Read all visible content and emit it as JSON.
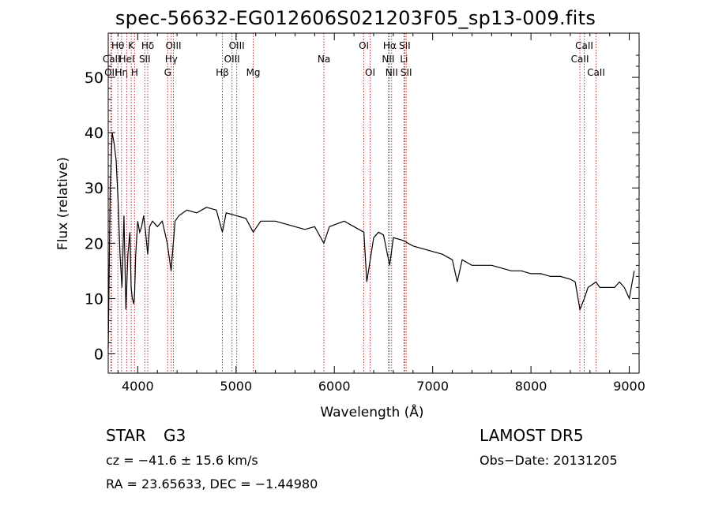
{
  "chart_data": {
    "type": "line",
    "title": "spec-56632-EG012606S021203F05_sp13-009.fits",
    "xlabel": "Wavelength (Å)",
    "ylabel": "Flux (relative)",
    "xlim": [
      3700,
      9100
    ],
    "ylim": [
      -3.5,
      58
    ],
    "xticks": [
      4000,
      5000,
      6000,
      7000,
      8000,
      9000
    ],
    "yticks": [
      0,
      10,
      20,
      30,
      40,
      50
    ],
    "grid": false,
    "series": [
      {
        "x": [
          3700,
          3720,
          3740,
          3760,
          3780,
          3800,
          3820,
          3840,
          3860,
          3880,
          3900,
          3920,
          3933,
          3945,
          3960,
          3968,
          3980,
          4000,
          4020,
          4040,
          4060,
          4080,
          4102,
          4120,
          4150,
          4200,
          4250,
          4300,
          4340,
          4380,
          4420,
          4500,
          4600,
          4700,
          4800,
          4861,
          4900,
          5000,
          5100,
          5175,
          5250,
          5400,
          5500,
          5600,
          5700,
          5800,
          5893,
          5950,
          6100,
          6200,
          6300,
          6330,
          6400,
          6450,
          6500,
          6563,
          6600,
          6700,
          6800,
          6900,
          7000,
          7100,
          7200,
          7250,
          7300,
          7400,
          7500,
          7600,
          7700,
          7800,
          7900,
          8000,
          8100,
          8200,
          8300,
          8400,
          8450,
          8498,
          8542,
          8580,
          8662,
          8700,
          8800,
          8850,
          8900,
          8950,
          9000,
          9050
        ],
        "values": [
          1,
          30,
          40,
          38,
          35,
          28,
          18,
          12,
          25,
          8,
          18,
          22,
          12,
          10,
          9,
          11,
          18,
          24,
          22,
          23,
          25,
          22,
          18,
          23,
          24,
          23,
          24,
          20,
          15,
          24,
          25,
          26,
          25.5,
          26.5,
          26,
          22,
          25.5,
          25,
          24.5,
          22,
          24,
          24,
          23.5,
          23,
          22.5,
          23,
          20,
          23,
          24,
          23,
          22,
          13,
          21,
          22,
          21.5,
          16,
          21,
          20.5,
          19.5,
          19,
          18.5,
          18,
          17,
          13,
          17,
          16,
          16,
          16,
          15.5,
          15,
          15,
          14.5,
          14.5,
          14,
          14,
          13.5,
          13,
          8,
          10,
          12,
          13,
          12,
          12,
          12,
          13,
          12,
          10,
          15
        ]
      }
    ],
    "lines": [
      {
        "label": "OII",
        "x": 3727,
        "row": 3
      },
      {
        "label": "CaII",
        "x": 3734,
        "row": 2
      },
      {
        "label": "Hθ",
        "x": 3798,
        "row": 1
      },
      {
        "label": "Hη",
        "x": 3835,
        "row": 3
      },
      {
        "label": "HeI",
        "x": 3889,
        "row": 2
      },
      {
        "label": "K",
        "x": 3934,
        "row": 1
      },
      {
        "label": "H",
        "x": 3968,
        "row": 3
      },
      {
        "label": "SII",
        "x": 4072,
        "row": 2
      },
      {
        "label": "Hδ",
        "x": 4102,
        "row": 1
      },
      {
        "label": "G",
        "x": 4305,
        "row": 3
      },
      {
        "label": "Hγ",
        "x": 4341,
        "row": 2
      },
      {
        "label": "OIII",
        "x": 4363,
        "row": 1
      },
      {
        "label": "Hβ",
        "x": 4861,
        "row": 3
      },
      {
        "label": "OIII",
        "x": 4959,
        "row": 2
      },
      {
        "label": "OIII",
        "x": 5007,
        "row": 1
      },
      {
        "label": "Mg",
        "x": 5175,
        "row": 3
      },
      {
        "label": "Na",
        "x": 5894,
        "row": 2
      },
      {
        "label": "OI",
        "x": 6300,
        "row": 1
      },
      {
        "label": "OI",
        "x": 6364,
        "row": 3
      },
      {
        "label": "NII",
        "x": 6548,
        "row": 2
      },
      {
        "label": "Hα",
        "x": 6563,
        "row": 1
      },
      {
        "label": "NII",
        "x": 6583,
        "row": 3
      },
      {
        "label": "Li",
        "x": 6708,
        "row": 2
      },
      {
        "label": "SII",
        "x": 6716,
        "row": 1
      },
      {
        "label": "SII",
        "x": 6731,
        "row": 3
      },
      {
        "label": "CaII",
        "x": 8498,
        "row": 2
      },
      {
        "label": "CaII",
        "x": 8542,
        "row": 1
      },
      {
        "label": "CaII",
        "x": 8662,
        "row": 3
      }
    ]
  },
  "info": {
    "object_class": "STAR",
    "subclass": "G3",
    "survey": "LAMOST  DR5",
    "cz": "cz = −41.6 ± 15.6 km/s",
    "obs_date": "Obs−Date: 20131205",
    "coords": "RA =  23.65633, DEC =  −1.44980"
  },
  "colors": {
    "spectrum": "#000000",
    "line_markers": "#b22222",
    "axes": "#000000"
  }
}
